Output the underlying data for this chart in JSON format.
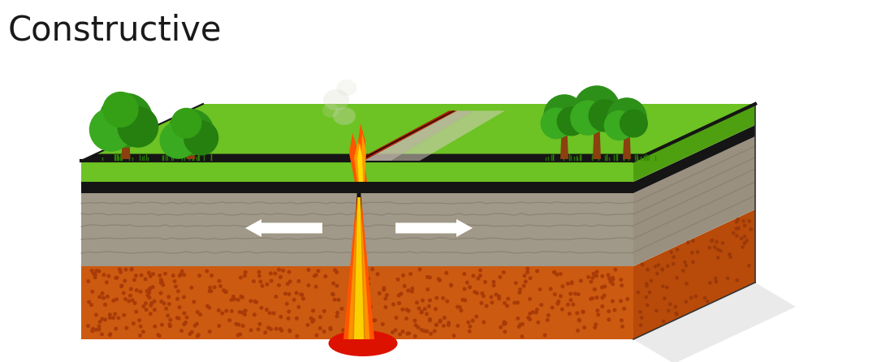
{
  "title": "Constructive",
  "title_color": "#1a1a1a",
  "title_fontsize": 30,
  "bg_color": "#ffffff",
  "fig_width": 10.8,
  "fig_height": 4.46,
  "colors": {
    "grass_top_face": "#6dc224",
    "grass_top_darker": "#4fa010",
    "ground_black": "#151515",
    "rock_gray": "#a09888",
    "rock_gray_dark": "#807868",
    "rock_side": "#9a9080",
    "rock_side_dark": "#807060",
    "mantle_orange": "#cc5a10",
    "mantle_orange_light": "#e06818",
    "mantle_dark_dot": "#a83a08",
    "mantle_side": "#b84a0a",
    "mantle_side_dark": "#9a3808",
    "magma_red": "#dd1100",
    "magma_orange": "#ff5500",
    "magma_bright": "#ff9900",
    "magma_yellow": "#ffdd00",
    "crack_dark": "#1a0800",
    "crack_red": "#990000",
    "smoke_color": "#d8d8c8",
    "arrow_white": "#ffffff",
    "shadow_color": "#cccccc",
    "grass_bottom_trim": "#3a8800"
  }
}
